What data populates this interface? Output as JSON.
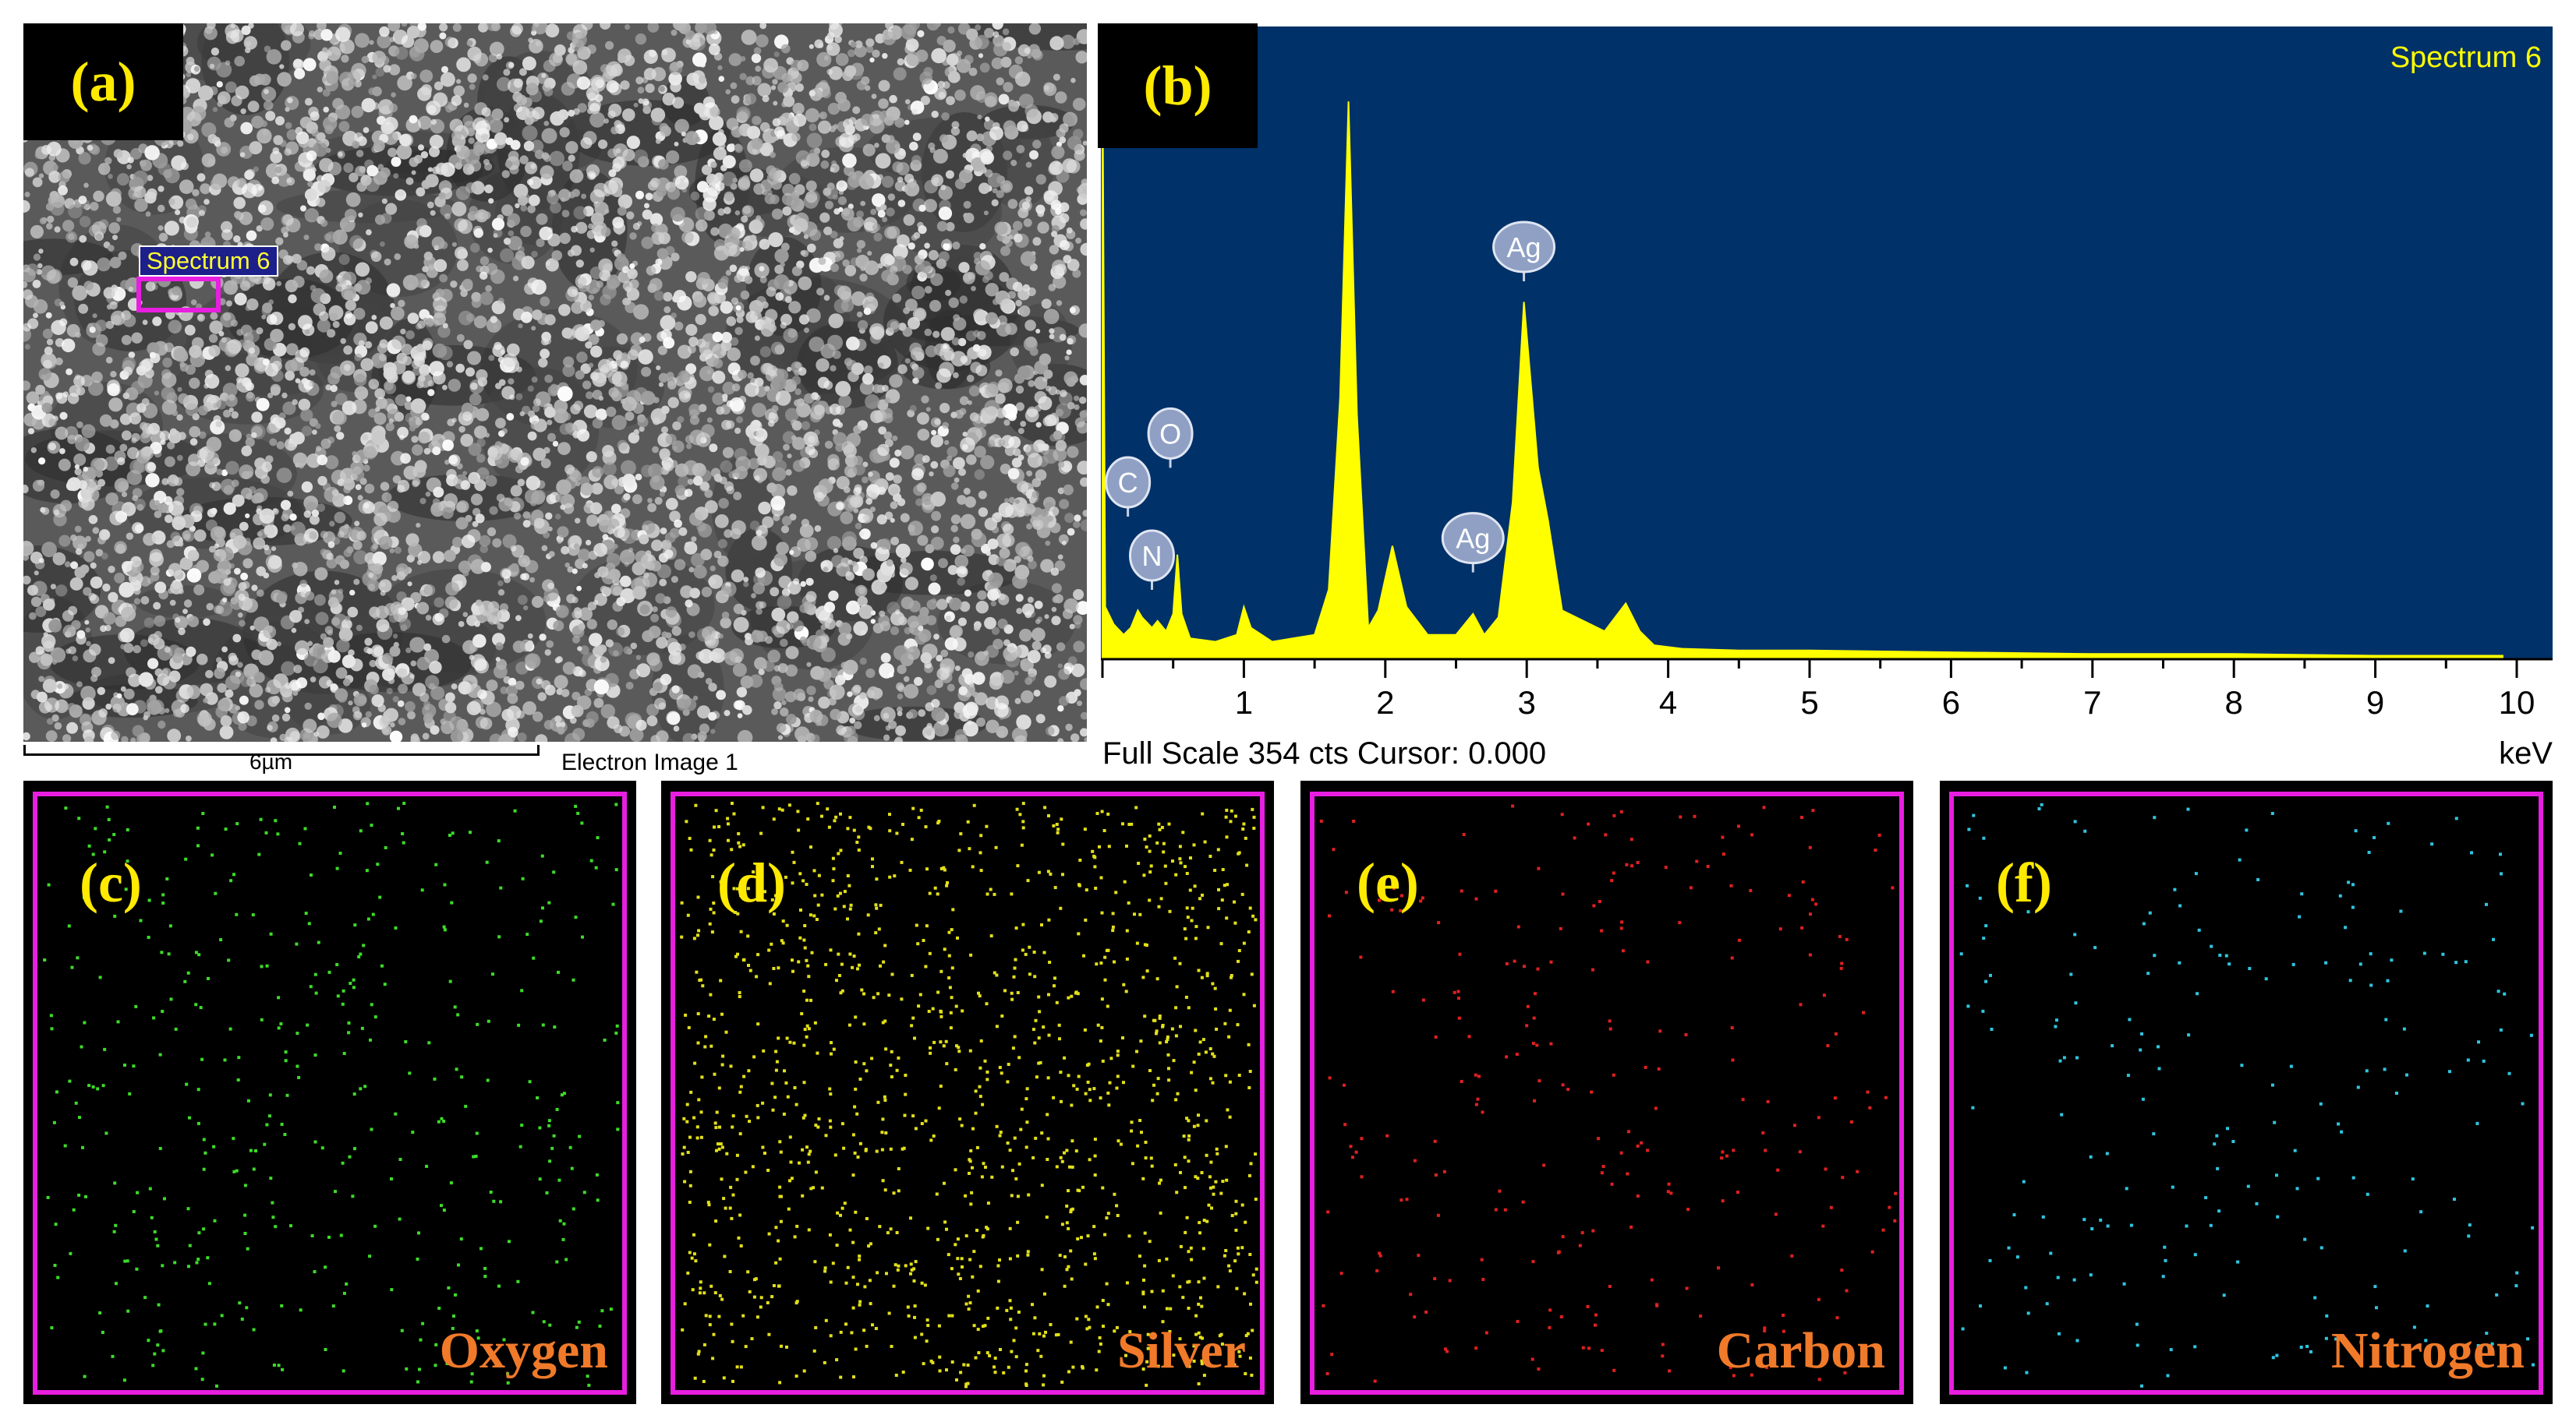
{
  "panels": {
    "a": {
      "letter": "(a)",
      "spectrum_box_label": "Spectrum 6",
      "scale_bar": "6µm",
      "image_label": "Electron Image 1"
    },
    "b": {
      "letter": "(b)"
    },
    "maps": [
      {
        "letter": "(c)",
        "element": "Oxygen",
        "dot_color": "#3ddc28"
      },
      {
        "letter": "(d)",
        "element": "Silver",
        "dot_color": "#e3e01a"
      },
      {
        "letter": "(e)",
        "element": "Carbon",
        "dot_color": "#e02020"
      },
      {
        "letter": "(f)",
        "element": "Nitrogen",
        "dot_color": "#2ec6e0"
      }
    ]
  },
  "chart_data": {
    "type": "line",
    "spectrum_label": "Spectrum 6",
    "footer_text": "Full Scale 354 cts Cursor: 0.000",
    "xlabel": "keV",
    "ylabel": "",
    "xlim": [
      0,
      10
    ],
    "ylim": [
      0,
      354
    ],
    "x_ticks": [
      1,
      2,
      3,
      4,
      5,
      6,
      7,
      8,
      9,
      10
    ],
    "background_color": "#003168",
    "fill_color": "#ffff00",
    "series": [
      {
        "x": [
          0.0,
          0.02,
          0.08,
          0.15,
          0.2,
          0.25,
          0.28,
          0.35,
          0.39,
          0.45,
          0.5,
          0.53,
          0.56,
          0.62,
          0.8,
          0.95,
          1.0,
          1.05,
          1.2,
          1.5,
          1.6,
          1.68,
          1.74,
          1.8,
          1.88,
          1.95,
          2.05,
          2.15,
          2.3,
          2.5,
          2.62,
          2.7,
          2.8,
          2.9,
          2.98,
          3.08,
          3.15,
          3.25,
          3.4,
          3.55,
          3.7,
          3.8,
          3.9,
          4.1,
          4.5,
          5.0,
          6.0,
          7.0,
          8.0,
          9.0,
          9.9
        ],
        "y": [
          354,
          30,
          20,
          14,
          18,
          28,
          24,
          18,
          22,
          16,
          26,
          60,
          26,
          12,
          10,
          14,
          30,
          18,
          10,
          14,
          40,
          150,
          320,
          140,
          18,
          28,
          65,
          30,
          14,
          14,
          26,
          14,
          24,
          90,
          205,
          110,
          80,
          28,
          22,
          16,
          32,
          16,
          8,
          6,
          5,
          5,
          4,
          3,
          3,
          2,
          2
        ]
      }
    ],
    "peak_labels": [
      {
        "text": "C",
        "x": 0.18,
        "y": 80
      },
      {
        "text": "N",
        "x": 0.35,
        "y": 38
      },
      {
        "text": "O",
        "x": 0.48,
        "y": 108
      },
      {
        "text": "Ag",
        "x": 2.62,
        "y": 48
      },
      {
        "text": "Ag",
        "x": 2.98,
        "y": 215
      }
    ]
  }
}
